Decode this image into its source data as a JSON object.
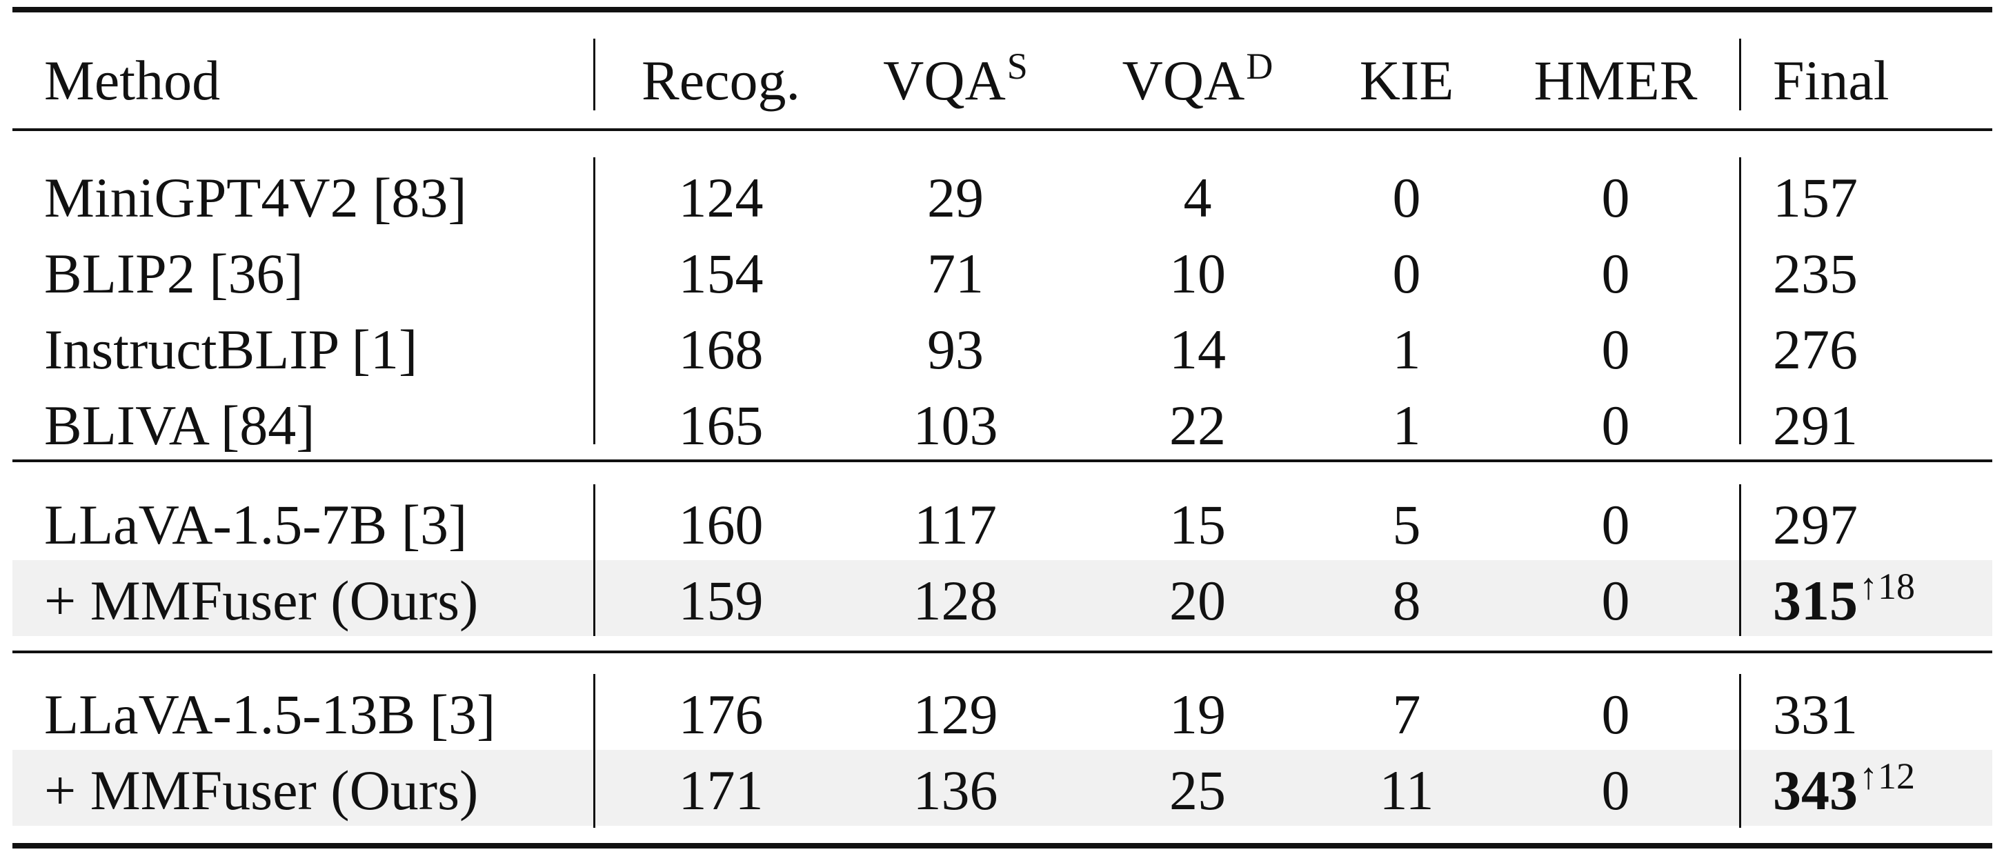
{
  "table": {
    "headers": [
      {
        "base": "Method",
        "sup": ""
      },
      {
        "base": "Recog.",
        "sup": ""
      },
      {
        "base": "VQA",
        "sup": "S"
      },
      {
        "base": "VQA",
        "sup": "D"
      },
      {
        "base": "KIE",
        "sup": ""
      },
      {
        "base": "HMER",
        "sup": ""
      },
      {
        "base": "Final",
        "sup": ""
      }
    ],
    "groups": [
      {
        "rows": [
          {
            "method": "MiniGPT4V2 [83]",
            "recog": "124",
            "vqa_s": "29",
            "vqa_d": "4",
            "kie": "0",
            "hmer": "0",
            "final": "157",
            "final_delta": "",
            "highlight": false
          },
          {
            "method": "BLIP2 [36]",
            "recog": "154",
            "vqa_s": "71",
            "vqa_d": "10",
            "kie": "0",
            "hmer": "0",
            "final": "235",
            "final_delta": "",
            "highlight": false
          },
          {
            "method": "InstructBLIP [1]",
            "recog": "168",
            "vqa_s": "93",
            "vqa_d": "14",
            "kie": "1",
            "hmer": "0",
            "final": "276",
            "final_delta": "",
            "highlight": false
          },
          {
            "method": "BLIVA [84]",
            "recog": "165",
            "vqa_s": "103",
            "vqa_d": "22",
            "kie": "1",
            "hmer": "0",
            "final": "291",
            "final_delta": "",
            "highlight": false
          }
        ]
      },
      {
        "rows": [
          {
            "method": "LLaVA-1.5-7B [3]",
            "recog": "160",
            "vqa_s": "117",
            "vqa_d": "15",
            "kie": "5",
            "hmer": "0",
            "final": "297",
            "final_delta": "",
            "highlight": false
          },
          {
            "method": "+ MMFuser (Ours)",
            "recog": "159",
            "vqa_s": "128",
            "vqa_d": "20",
            "kie": "8",
            "hmer": "0",
            "final": "315",
            "final_delta": "↑18",
            "highlight": true
          }
        ]
      },
      {
        "rows": [
          {
            "method": "LLaVA-1.5-13B [3]",
            "recog": "176",
            "vqa_s": "129",
            "vqa_d": "19",
            "kie": "7",
            "hmer": "0",
            "final": "331",
            "final_delta": "",
            "highlight": false
          },
          {
            "method": "+ MMFuser (Ours)",
            "recog": "171",
            "vqa_s": "136",
            "vqa_d": "25",
            "kie": "11",
            "hmer": "0",
            "final": "343",
            "final_delta": "↑12",
            "highlight": true
          }
        ]
      }
    ]
  }
}
